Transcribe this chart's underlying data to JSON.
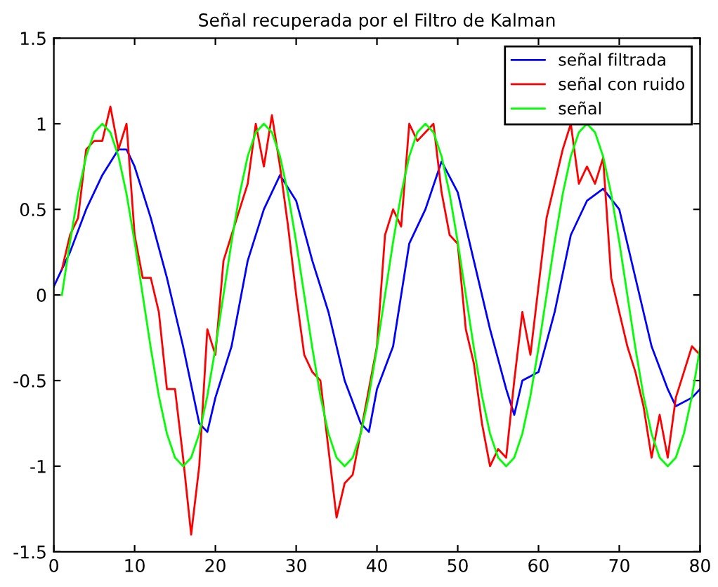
{
  "chart_data": {
    "type": "line",
    "title": "Señal recuperada por el Filtro de Kalman",
    "xlim": [
      0,
      80
    ],
    "ylim": [
      -1.5,
      1.5
    ],
    "xticks": [
      0,
      10,
      20,
      30,
      40,
      50,
      60,
      70,
      80
    ],
    "yticks": [
      -1.5,
      -1,
      -0.5,
      0,
      0.5,
      1,
      1.5
    ],
    "grid": false,
    "legend": "top right",
    "line_style": "solid",
    "marker": "none",
    "series": [
      {
        "name": "señal filtrada",
        "color": "#0000ff",
        "x": [
          0,
          2,
          4,
          6,
          8,
          9,
          10,
          12,
          14,
          16,
          18,
          19,
          20,
          22,
          24,
          26,
          28,
          30,
          32,
          34,
          36,
          38,
          39,
          40,
          42,
          44,
          46,
          48,
          50,
          52,
          54,
          56,
          57,
          58,
          60,
          62,
          64,
          66,
          68,
          70,
          72,
          74,
          76,
          77,
          79,
          80
        ],
        "values": [
          0.05,
          0.25,
          0.5,
          0.7,
          0.85,
          0.85,
          0.75,
          0.45,
          0.1,
          -0.3,
          -0.75,
          -0.8,
          -0.6,
          -0.3,
          0.2,
          0.5,
          0.7,
          0.55,
          0.2,
          -0.1,
          -0.5,
          -0.75,
          -0.8,
          -0.55,
          -0.3,
          0.3,
          0.5,
          0.78,
          0.6,
          0.2,
          -0.2,
          -0.55,
          -0.7,
          -0.5,
          -0.45,
          -0.1,
          0.35,
          0.55,
          0.62,
          0.5,
          0.1,
          -0.3,
          -0.55,
          -0.65,
          -0.6,
          -0.55
        ]
      },
      {
        "name": "señal con ruido",
        "color": "#ff0000",
        "x": [
          1,
          2,
          3,
          4,
          5,
          6,
          7,
          8,
          9,
          10,
          11,
          12,
          13,
          14,
          15,
          16,
          17,
          18,
          19,
          20,
          21,
          22,
          23,
          24,
          25,
          26,
          27,
          28,
          29,
          30,
          31,
          32,
          33,
          34,
          35,
          36,
          37,
          38,
          39,
          40,
          41,
          42,
          43,
          44,
          45,
          46,
          47,
          48,
          49,
          50,
          51,
          52,
          53,
          54,
          55,
          56,
          57,
          58,
          59,
          60,
          61,
          62,
          63,
          64,
          65,
          66,
          67,
          68,
          69,
          70,
          71,
          72,
          73,
          74,
          75,
          76,
          77,
          78,
          79,
          80
        ],
        "values": [
          0.15,
          0.35,
          0.45,
          0.85,
          0.9,
          0.9,
          1.1,
          0.85,
          1.0,
          0.35,
          0.1,
          0.1,
          -0.1,
          -0.55,
          -0.55,
          -0.95,
          -1.4,
          -1.0,
          -0.2,
          -0.35,
          0.2,
          0.35,
          0.5,
          0.65,
          1.0,
          0.75,
          1.05,
          0.75,
          0.4,
          0.0,
          -0.35,
          -0.45,
          -0.5,
          -0.9,
          -1.3,
          -1.1,
          -1.05,
          -0.8,
          -0.55,
          -0.3,
          0.35,
          0.5,
          0.4,
          1.0,
          0.9,
          0.95,
          1.0,
          0.6,
          0.35,
          0.3,
          -0.2,
          -0.4,
          -0.75,
          -1.0,
          -0.9,
          -0.95,
          -0.5,
          -0.1,
          -0.35,
          0.05,
          0.45,
          0.65,
          0.85,
          1.0,
          0.65,
          0.75,
          0.65,
          0.8,
          0.1,
          -0.1,
          -0.3,
          -0.45,
          -0.65,
          -0.95,
          -0.7,
          -0.95,
          -0.6,
          -0.45,
          -0.3,
          -0.35
        ]
      },
      {
        "name": "señal",
        "color": "#00ff00",
        "x": [
          1,
          2,
          3,
          4,
          5,
          6,
          7,
          8,
          9,
          10,
          11,
          12,
          13,
          14,
          15,
          16,
          17,
          18,
          19,
          20,
          21,
          22,
          23,
          24,
          25,
          26,
          27,
          28,
          29,
          30,
          31,
          32,
          33,
          34,
          35,
          36,
          37,
          38,
          39,
          40,
          41,
          42,
          43,
          44,
          45,
          46,
          47,
          48,
          49,
          50,
          51,
          52,
          53,
          54,
          55,
          56,
          57,
          58,
          59,
          60,
          61,
          62,
          63,
          64,
          65,
          66,
          67,
          68,
          69,
          70,
          71,
          72,
          73,
          74,
          75,
          76,
          77,
          78,
          79,
          80
        ],
        "values": [
          0,
          0.31,
          0.59,
          0.81,
          0.95,
          1,
          0.95,
          0.81,
          0.59,
          0.31,
          0,
          -0.31,
          -0.59,
          -0.81,
          -0.95,
          -1,
          -0.95,
          -0.81,
          -0.59,
          -0.31,
          0,
          0.31,
          0.59,
          0.81,
          0.95,
          1,
          0.95,
          0.81,
          0.59,
          0.31,
          0,
          -0.31,
          -0.59,
          -0.81,
          -0.95,
          -1,
          -0.95,
          -0.81,
          -0.59,
          -0.31,
          0,
          0.31,
          0.59,
          0.81,
          0.95,
          1,
          0.95,
          0.81,
          0.59,
          0.31,
          0,
          -0.31,
          -0.59,
          -0.81,
          -0.95,
          -1,
          -0.95,
          -0.81,
          -0.59,
          -0.31,
          0,
          0.31,
          0.59,
          0.81,
          0.95,
          1,
          0.95,
          0.81,
          0.59,
          0.31,
          0,
          -0.31,
          -0.59,
          -0.81,
          -0.95,
          -1,
          -0.95,
          -0.81,
          -0.59,
          -0.31
        ]
      }
    ]
  }
}
